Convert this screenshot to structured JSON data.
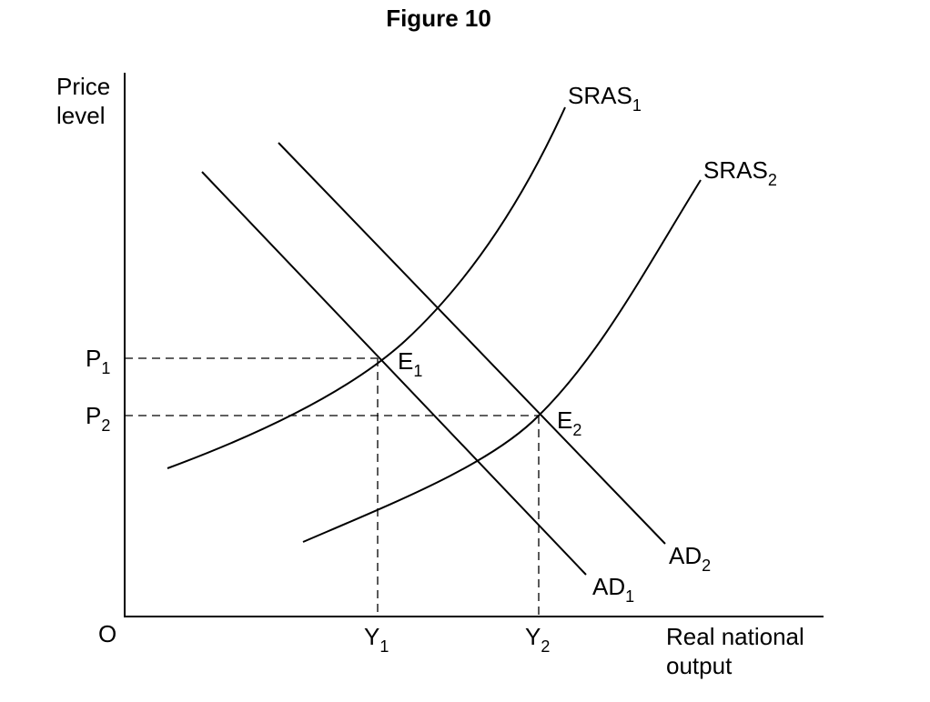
{
  "title": "Figure 10",
  "axes": {
    "y_label_line1": "Price",
    "y_label_line2": "level",
    "x_label_line1": "Real national",
    "x_label_line2": "output",
    "origin": "O"
  },
  "curves": {
    "sras1": {
      "main": "SRAS",
      "sub": "1"
    },
    "sras2": {
      "main": "SRAS",
      "sub": "2"
    },
    "ad1": {
      "main": "AD",
      "sub": "1"
    },
    "ad2": {
      "main": "AD",
      "sub": "2"
    }
  },
  "points": {
    "e1": {
      "main": "E",
      "sub": "1"
    },
    "e2": {
      "main": "E",
      "sub": "2"
    }
  },
  "levels": {
    "p1": {
      "main": "P",
      "sub": "1"
    },
    "p2": {
      "main": "P",
      "sub": "2"
    },
    "y1": {
      "main": "Y",
      "sub": "1"
    },
    "y2": {
      "main": "Y",
      "sub": "2"
    }
  }
}
